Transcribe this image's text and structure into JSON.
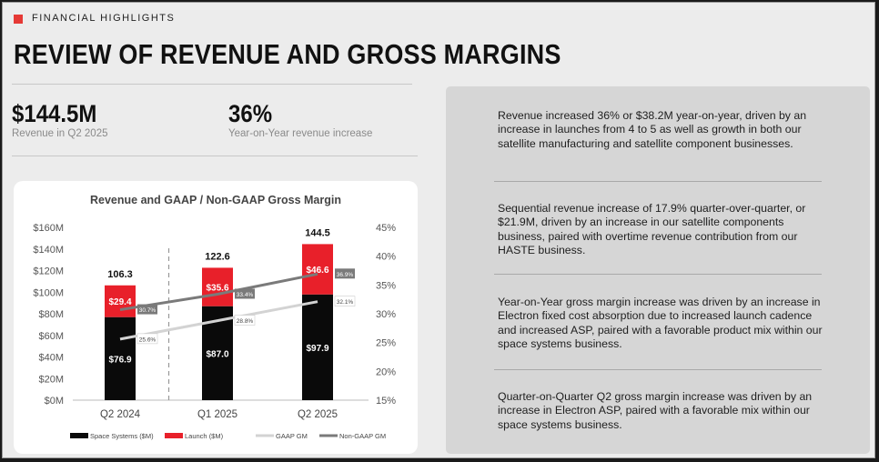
{
  "header": {
    "section_label": "FINANCIAL HIGHLIGHTS",
    "title": "REVIEW OF REVENUE AND GROSS MARGINS"
  },
  "metrics": [
    {
      "value": "$144.5M",
      "label": "Revenue in Q2 2025"
    },
    {
      "value": "36%",
      "label": "Year-on-Year revenue increase"
    }
  ],
  "chart_data": {
    "type": "bar",
    "title": "Revenue and GAAP / Non-GAAP Gross Margin",
    "categories": [
      "Q2 2024",
      "Q1 2025",
      "Q2 2025"
    ],
    "series": [
      {
        "name": "Space Systems ($M)",
        "type": "bar",
        "stack": "rev",
        "values": [
          76.9,
          87.0,
          97.9
        ],
        "labels": [
          "$76.9",
          "$87.0",
          "$97.9"
        ],
        "color": "#0a0a0a"
      },
      {
        "name": "Launch ($M)",
        "type": "bar",
        "stack": "rev",
        "values": [
          29.4,
          35.6,
          46.6
        ],
        "labels": [
          "$29.4",
          "$35.6",
          "$46.6"
        ],
        "color": "#e8202a"
      },
      {
        "name": "GAAP GM",
        "type": "line",
        "axis": "right",
        "values": [
          25.6,
          28.8,
          32.1
        ],
        "labels": [
          "25.6%",
          "28.8%",
          "32.1%"
        ],
        "color": "#d3d3d3"
      },
      {
        "name": "Non-GAAP GM",
        "type": "line",
        "axis": "right",
        "values": [
          30.7,
          33.4,
          36.9
        ],
        "labels": [
          "30.7%",
          "33.4%",
          "36.9%"
        ],
        "color": "#7a7a7a"
      }
    ],
    "totals": [
      "106.3",
      "122.6",
      "144.5"
    ],
    "ylim": [
      0,
      160
    ],
    "yticks": [
      "$0M",
      "$20M",
      "$40M",
      "$60M",
      "$80M",
      "$100M",
      "$120M",
      "$140M",
      "$160M"
    ],
    "y2lim": [
      15,
      45
    ],
    "y2ticks": [
      "15%",
      "20%",
      "25%",
      "30%",
      "35%",
      "40%",
      "45%"
    ],
    "legend_position": "bottom",
    "grid": false
  },
  "bullets": [
    "Revenue increased 36% or $38.2M year-on-year, driven by an increase in launches from 4 to 5 as well as growth in both our satellite manufacturing and satellite component businesses.",
    "Sequential revenue increase of 17.9% quarter-over-quarter, or $21.9M, driven by an increase in our satellite components business, paired with overtime revenue contribution from our HASTE business.",
    "Year-on-Year gross margin increase was driven by an increase in Electron fixed cost absorption due to increased launch cadence and increased ASP, paired with a favorable product mix within our space systems business.",
    "Quarter-on-Quarter Q2 gross margin increase was driven by an increase in Electron ASP, paired with a favorable mix within our space systems business."
  ]
}
